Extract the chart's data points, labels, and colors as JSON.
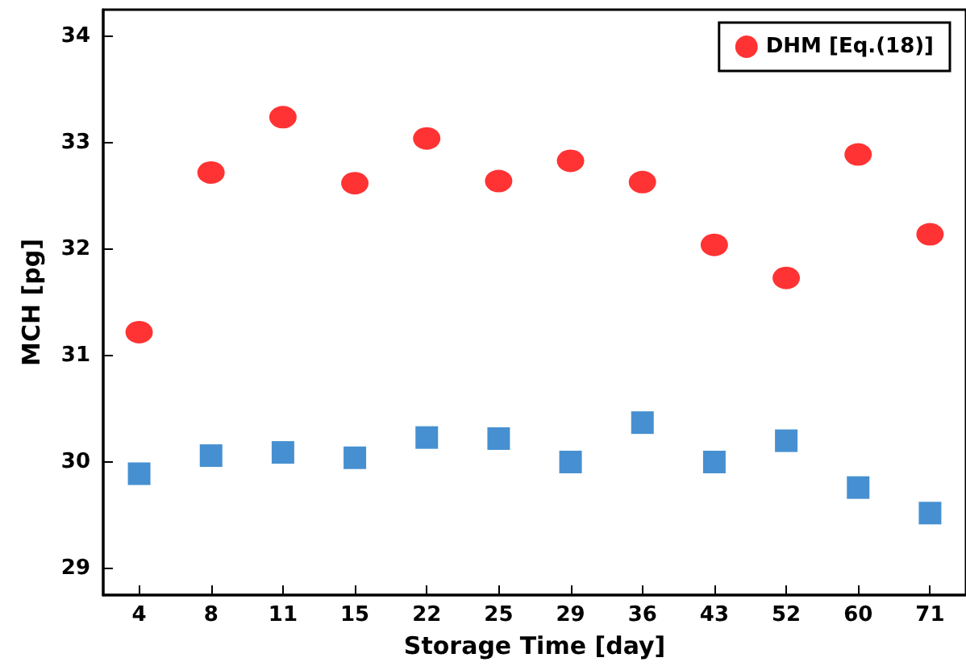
{
  "chart_data": {
    "type": "scatter",
    "xlabel": "Storage Time [day]",
    "ylabel": "MCH [pg]",
    "categories": [
      "4",
      "8",
      "11",
      "15",
      "22",
      "25",
      "29",
      "36",
      "43",
      "52",
      "60",
      "71"
    ],
    "ylim": [
      28.75,
      34.25
    ],
    "yticks": [
      29,
      30,
      31,
      32,
      33,
      34
    ],
    "grid": false,
    "legend": "top right",
    "series": [
      {
        "name": "DHM [Eq.(18)]",
        "color": "#ff0000",
        "marker": "circle",
        "values": [
          31.22,
          32.72,
          33.24,
          32.62,
          33.04,
          32.64,
          32.83,
          32.63,
          32.04,
          31.73,
          32.89,
          32.14
        ]
      },
      {
        "color": "#1874c5",
        "marker": "square",
        "values": [
          29.89,
          30.06,
          30.09,
          30.04,
          30.23,
          30.22,
          30.0,
          30.37,
          30.0,
          30.2,
          29.76,
          29.52
        ]
      }
    ]
  }
}
